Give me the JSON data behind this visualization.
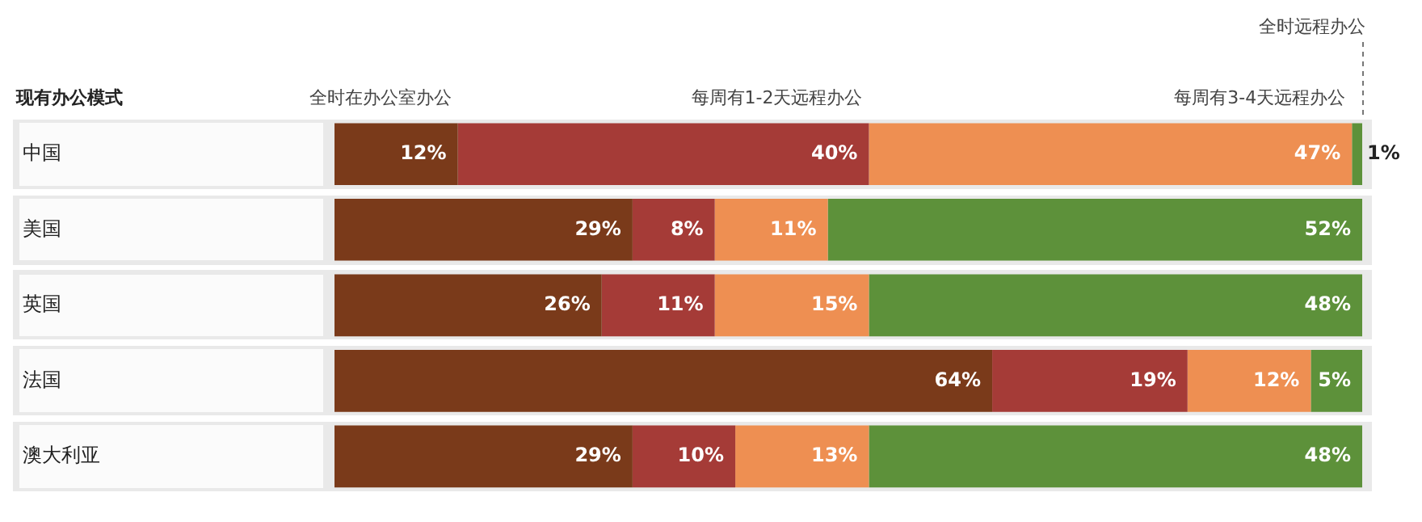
{
  "chart_data": {
    "type": "bar",
    "orientation": "horizontal",
    "stacked": true,
    "annotations": [
      "现有办公模式"
    ],
    "categories": [
      "中国",
      "美国",
      "英国",
      "法国",
      "澳大利亚"
    ],
    "xlim": [
      0,
      100
    ],
    "tick_labels": "y",
    "series": [
      {
        "name": "全时在办公室办公",
        "color": "#7a3a1a",
        "values": [
          12,
          29,
          26,
          64,
          29
        ],
        "value_labels": [
          "12%",
          "29%",
          "26%",
          "64%",
          "29%"
        ]
      },
      {
        "name": "每周有1-2天远程办公",
        "color": "#a53b37",
        "values": [
          40,
          8,
          11,
          19,
          10
        ],
        "value_labels": [
          "40%",
          "8%",
          "11%",
          "19%",
          "10%"
        ]
      },
      {
        "name": "每周有3-4天远程办公",
        "color": "#ee8f52",
        "values": [
          47,
          11,
          15,
          12,
          13
        ],
        "value_labels": [
          "47%",
          "11%",
          "15%",
          "12%",
          "13%"
        ]
      },
      {
        "name": "全时远程办公",
        "color": "#5d913a",
        "values": [
          1,
          52,
          48,
          5,
          48
        ],
        "value_labels": [
          "1%",
          "52%",
          "48%",
          "5%",
          "48%"
        ]
      }
    ]
  }
}
